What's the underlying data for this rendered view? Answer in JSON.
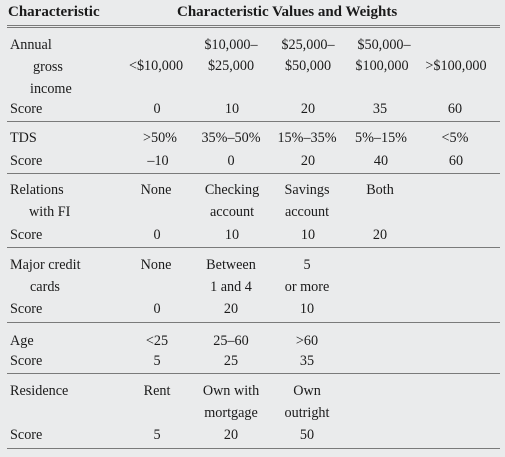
{
  "header": {
    "characteristic": "Characteristic",
    "values_and_weights": "Characteristic Values and Weights"
  },
  "income": {
    "label_lines": [
      "Annual",
      "gross",
      "income"
    ],
    "values": [
      [
        "",
        "<$10,000"
      ],
      [
        "$10,000–",
        "$25,000"
      ],
      [
        "$25,000–",
        "$50,000"
      ],
      [
        "$50,000–",
        "$100,000"
      ],
      [
        "",
        ">$100,000"
      ]
    ],
    "score_label": "Score",
    "scores": [
      "0",
      "10",
      "20",
      "35",
      "60"
    ]
  },
  "tds": {
    "label": "TDS",
    "values": [
      ">50%",
      "35%–50%",
      "15%–35%",
      "5%–15%",
      "<5%"
    ],
    "score_label": "Score",
    "scores": [
      "–10",
      "0",
      "20",
      "40",
      "60"
    ]
  },
  "relations": {
    "label_lines": [
      "Relations",
      "with FI"
    ],
    "values": [
      [
        "None",
        ""
      ],
      [
        "Checking",
        "account"
      ],
      [
        "Savings",
        "account"
      ],
      [
        "Both",
        ""
      ]
    ],
    "score_label": "Score",
    "scores": [
      "0",
      "10",
      "10",
      "20"
    ]
  },
  "cards": {
    "label_lines": [
      "Major credit",
      "cards"
    ],
    "values": [
      [
        "None",
        ""
      ],
      [
        "Between",
        "1 and 4"
      ],
      [
        "5",
        "or more"
      ]
    ],
    "score_label": "Score",
    "scores": [
      "0",
      "20",
      "10"
    ]
  },
  "age": {
    "label": "Age",
    "values": [
      "<25",
      "25–60",
      ">60"
    ],
    "score_label": "Score",
    "scores": [
      "5",
      "25",
      "35"
    ]
  },
  "residence": {
    "label": "Residence",
    "values": [
      [
        "Rent",
        ""
      ],
      [
        "Own with",
        "mortgage"
      ],
      [
        "Own",
        "outright"
      ]
    ],
    "score_label": "Score",
    "scores": [
      "5",
      "20",
      "50"
    ]
  }
}
